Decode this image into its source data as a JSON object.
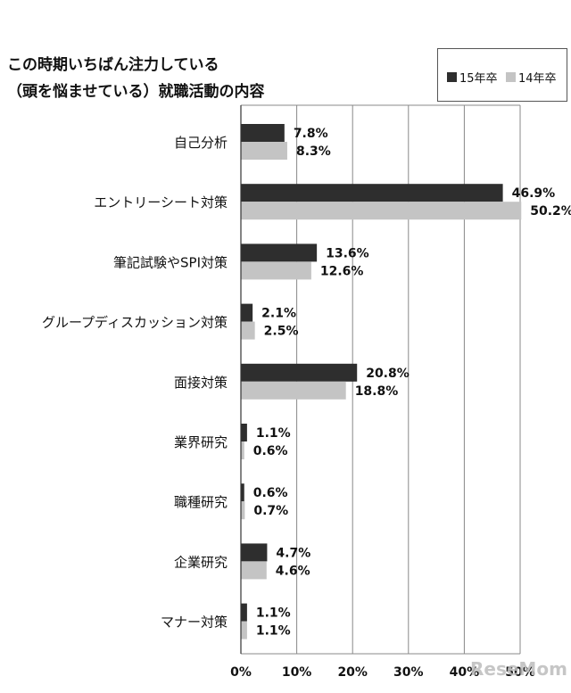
{
  "title_line1": "この時期いちばん注力している",
  "title_line2": "（頭を悩ませている）就職活動の内容",
  "watermark": "ReseMom",
  "colors": {
    "series_15": "#2e2e2e",
    "series_14": "#c4c4c4",
    "grid": "#888888"
  },
  "chart_data": {
    "type": "bar",
    "orientation": "horizontal",
    "categories": [
      "自己分析",
      "エントリーシート対策",
      "筆記試験やSPI対策",
      "グループディスカッション対策",
      "面接対策",
      "業界研究",
      "職種研究",
      "企業研究",
      "マナー対策"
    ],
    "series": [
      {
        "name": "15年卒",
        "values": [
          7.8,
          46.9,
          13.6,
          2.1,
          20.8,
          1.1,
          0.6,
          4.7,
          1.1
        ]
      },
      {
        "name": "14年卒",
        "values": [
          8.3,
          50.2,
          12.6,
          2.5,
          18.8,
          0.6,
          0.7,
          4.6,
          1.1
        ]
      }
    ],
    "value_labels": [
      [
        "7.8%",
        "46.9%",
        "13.6%",
        "2.1%",
        "20.8%",
        "1.1%",
        "0.6%",
        "4.7%",
        "1.1%"
      ],
      [
        "8.3%",
        "50.2%",
        "12.6%",
        "2.5%",
        "18.8%",
        "0.6%",
        "0.7%",
        "4.6%",
        "1.1%"
      ]
    ],
    "x_ticks": [
      "0%",
      "10%",
      "20%",
      "30%",
      "40%",
      "50%"
    ],
    "xlim": [
      0,
      50
    ],
    "grid": true,
    "legend_position": "top-right"
  }
}
